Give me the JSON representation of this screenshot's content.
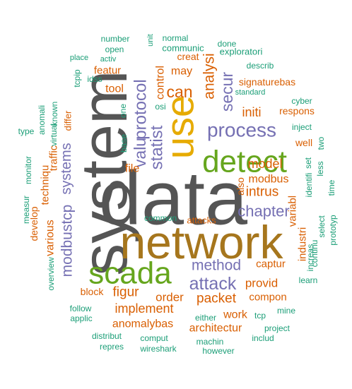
{
  "palette": {
    "teal": "#1b9e77",
    "orange": "#d95f02",
    "purple": "#7570b3",
    "green": "#66a61e",
    "gold": "#e6ab02",
    "brown": "#a6761d",
    "gray": "#555555"
  },
  "words": [
    {
      "id": "w-data",
      "text": "data",
      "color": "gray"
    },
    {
      "id": "w-system",
      "text": "system",
      "color": "gray"
    },
    {
      "id": "w-network",
      "text": "network",
      "color": "brown"
    },
    {
      "id": "w-use",
      "text": "use",
      "color": "gold"
    },
    {
      "id": "w-detect",
      "text": "detect",
      "color": "green"
    },
    {
      "id": "w-scada",
      "text": "scada",
      "color": "green"
    },
    {
      "id": "w-process",
      "text": "process",
      "color": "purple"
    },
    {
      "id": "w-attack",
      "text": "attack",
      "color": "purple"
    },
    {
      "id": "w-chapter",
      "text": "chapter",
      "color": "purple"
    },
    {
      "id": "w-method",
      "text": "method",
      "color": "purple"
    },
    {
      "id": "w-statist",
      "text": "statist",
      "color": "purple"
    },
    {
      "id": "w-protocol",
      "text": "protocol",
      "color": "purple"
    },
    {
      "id": "w-valu",
      "text": "valu",
      "color": "purple"
    },
    {
      "id": "w-secur",
      "text": "secur",
      "color": "purple"
    },
    {
      "id": "w-systems",
      "text": "systems",
      "color": "purple"
    },
    {
      "id": "w-modbustcp",
      "text": "modbustcp",
      "color": "purple"
    },
    {
      "id": "w-packet",
      "text": "packet",
      "color": "orange"
    },
    {
      "id": "w-implement",
      "text": "implement",
      "color": "orange"
    },
    {
      "id": "w-figur",
      "text": "figur",
      "color": "orange"
    },
    {
      "id": "w-intrus",
      "text": "intrus",
      "color": "orange"
    },
    {
      "id": "w-model",
      "text": "model",
      "color": "orange"
    },
    {
      "id": "w-modbus",
      "text": "modbus",
      "color": "orange"
    },
    {
      "id": "w-analysi",
      "text": "analysi",
      "color": "orange"
    },
    {
      "id": "w-can",
      "text": "can",
      "color": "orange"
    },
    {
      "id": "w-may",
      "text": "may",
      "color": "orange"
    },
    {
      "id": "w-file",
      "text": "file",
      "color": "orange"
    },
    {
      "id": "w-provid",
      "text": "provid",
      "color": "orange"
    },
    {
      "id": "w-order",
      "text": "order",
      "color": "orange"
    },
    {
      "id": "w-anomalybas",
      "text": "anomalybas",
      "color": "orange"
    },
    {
      "id": "w-architectur",
      "text": "architectur",
      "color": "orange"
    },
    {
      "id": "w-work",
      "text": "work",
      "color": "orange"
    },
    {
      "id": "w-compon",
      "text": "compon",
      "color": "orange"
    },
    {
      "id": "w-captur",
      "text": "captur",
      "color": "orange"
    },
    {
      "id": "w-block",
      "text": "block",
      "color": "orange"
    },
    {
      "id": "w-various",
      "text": "various",
      "color": "orange"
    },
    {
      "id": "w-techniqu",
      "text": "techniqu",
      "color": "orange"
    },
    {
      "id": "w-traffic",
      "text": "traffic",
      "color": "orange"
    },
    {
      "id": "w-variabl",
      "text": "variabl",
      "color": "orange"
    },
    {
      "id": "w-industri",
      "text": "industri",
      "color": "orange"
    },
    {
      "id": "w-initi",
      "text": "initi",
      "color": "orange"
    },
    {
      "id": "w-respons",
      "text": "respons",
      "color": "orange"
    },
    {
      "id": "w-signaturebas",
      "text": "signaturebas",
      "color": "orange"
    },
    {
      "id": "w-control",
      "text": "control",
      "color": "orange"
    },
    {
      "id": "w-tool",
      "text": "tool",
      "color": "orange"
    },
    {
      "id": "w-featur",
      "text": "featur",
      "color": "orange"
    },
    {
      "id": "w-creat",
      "text": "creat",
      "color": "orange"
    },
    {
      "id": "w-well",
      "text": "well",
      "color": "orange"
    },
    {
      "id": "w-develop",
      "text": "develop",
      "color": "orange"
    },
    {
      "id": "w-also",
      "text": "also",
      "color": "orange"
    },
    {
      "id": "w-attacks",
      "text": "attacks",
      "color": "orange"
    },
    {
      "id": "w-differ",
      "text": "differ",
      "color": "orange"
    },
    {
      "id": "w-number",
      "text": "number",
      "color": "teal"
    },
    {
      "id": "w-unit",
      "text": "unit",
      "color": "teal"
    },
    {
      "id": "w-normal",
      "text": "normal",
      "color": "teal"
    },
    {
      "id": "w-done",
      "text": "done",
      "color": "teal"
    },
    {
      "id": "w-open",
      "text": "open",
      "color": "teal"
    },
    {
      "id": "w-communic",
      "text": "communic",
      "color": "teal"
    },
    {
      "id": "w-exploratori",
      "text": "exploratori",
      "color": "teal"
    },
    {
      "id": "w-place",
      "text": "place",
      "color": "teal"
    },
    {
      "id": "w-activ",
      "text": "activ",
      "color": "teal"
    },
    {
      "id": "w-describ",
      "text": "describ",
      "color": "teal"
    },
    {
      "id": "w-tcpip",
      "text": "tcpip",
      "color": "teal"
    },
    {
      "id": "w-idss",
      "text": "idss",
      "color": "teal"
    },
    {
      "id": "w-standard",
      "text": "standard",
      "color": "teal"
    },
    {
      "id": "w-cyber",
      "text": "cyber",
      "color": "teal"
    },
    {
      "id": "w-known",
      "text": "known",
      "color": "teal"
    },
    {
      "id": "w-one",
      "text": "one",
      "color": "teal"
    },
    {
      "id": "w-osi",
      "text": "osi",
      "color": "teal"
    },
    {
      "id": "w-anomali",
      "text": "anomali",
      "color": "teal"
    },
    {
      "id": "w-virtual",
      "text": "virtual",
      "color": "teal"
    },
    {
      "id": "w-overview",
      "text": "overview",
      "color": "teal"
    },
    {
      "id": "w-type",
      "text": "type",
      "color": "teal"
    },
    {
      "id": "w-inject",
      "text": "inject",
      "color": "teal"
    },
    {
      "id": "w-base",
      "text": "base",
      "color": "teal"
    },
    {
      "id": "w-two",
      "text": "two",
      "color": "teal"
    },
    {
      "id": "w-set",
      "text": "set",
      "color": "teal"
    },
    {
      "id": "w-identifi",
      "text": "identifi",
      "color": "teal"
    },
    {
      "id": "w-less",
      "text": "less",
      "color": "teal"
    },
    {
      "id": "w-time",
      "text": "time",
      "color": "teal"
    },
    {
      "id": "w-monitor",
      "text": "monitor",
      "color": "teal"
    },
    {
      "id": "w-measur",
      "text": "measur",
      "color": "teal"
    },
    {
      "id": "w-common",
      "text": "common",
      "color": "teal"
    },
    {
      "id": "w-select",
      "text": "select",
      "color": "teal"
    },
    {
      "id": "w-continu",
      "text": "continu",
      "color": "teal"
    },
    {
      "id": "w-increas",
      "text": "increas",
      "color": "teal"
    },
    {
      "id": "w-prototyp",
      "text": "prototyp",
      "color": "teal"
    },
    {
      "id": "w-learn",
      "text": "learn",
      "color": "teal"
    },
    {
      "id": "w-follow",
      "text": "follow",
      "color": "teal"
    },
    {
      "id": "w-applic",
      "text": "applic",
      "color": "teal"
    },
    {
      "id": "w-either",
      "text": "either",
      "color": "teal"
    },
    {
      "id": "w-tcp",
      "text": "tcp",
      "color": "teal"
    },
    {
      "id": "w-mine",
      "text": "mine",
      "color": "teal"
    },
    {
      "id": "w-distribut",
      "text": "distribut",
      "color": "teal"
    },
    {
      "id": "w-comput",
      "text": "comput",
      "color": "teal"
    },
    {
      "id": "w-machin",
      "text": "machin",
      "color": "teal"
    },
    {
      "id": "w-project",
      "text": "project",
      "color": "teal"
    },
    {
      "id": "w-includ",
      "text": "includ",
      "color": "teal"
    },
    {
      "id": "w-repres",
      "text": "repres",
      "color": "teal"
    },
    {
      "id": "w-wireshark",
      "text": "wireshark",
      "color": "teal"
    },
    {
      "id": "w-however",
      "text": "however",
      "color": "teal"
    }
  ]
}
